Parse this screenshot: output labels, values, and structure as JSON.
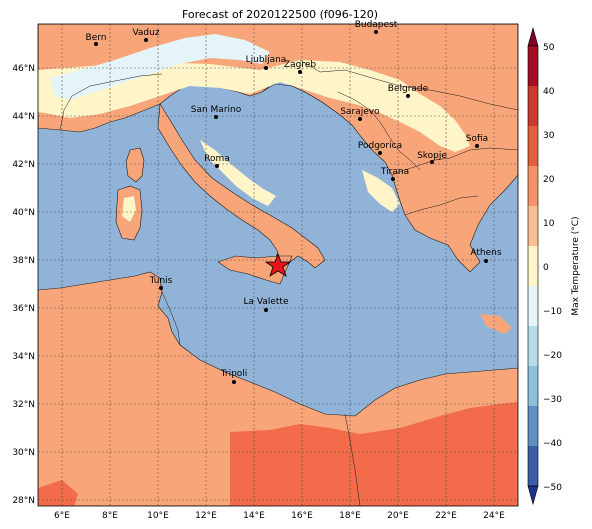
{
  "title": "Forecast of 2020122500 (f096-120)",
  "colorbar": {
    "label": "Max Temperature (°C)",
    "ticks": [
      "50",
      "40",
      "30",
      "20",
      "10",
      "0",
      "−10",
      "−20",
      "−30",
      "−40",
      "−50"
    ],
    "colors": [
      "#7f0022",
      "#a40d26",
      "#c93a2f",
      "#e06040",
      "#f3936a",
      "#f9bf94",
      "#fff5c8",
      "#e5f4f9",
      "#b7dde9",
      "#8ebfdb",
      "#5f8fc3",
      "#3a5fa8",
      "#1f3291"
    ]
  },
  "axes": {
    "lon_ticks": [
      "6°E",
      "8°E",
      "10°E",
      "12°E",
      "14°E",
      "16°E",
      "18°E",
      "20°E",
      "22°E",
      "24°E"
    ],
    "lat_ticks": [
      "46°N",
      "44°N",
      "42°N",
      "40°N",
      "38°N",
      "36°N",
      "34°N",
      "32°N",
      "30°N",
      "28°N"
    ]
  },
  "cities": [
    {
      "name": "Bern"
    },
    {
      "name": "Vaduz"
    },
    {
      "name": "Budapest"
    },
    {
      "name": "Ljubljana"
    },
    {
      "name": "Zagreb"
    },
    {
      "name": "Belgrade"
    },
    {
      "name": "San Marino"
    },
    {
      "name": "Sarajevo"
    },
    {
      "name": "Podgorica"
    },
    {
      "name": "Sofia"
    },
    {
      "name": "Skopje"
    },
    {
      "name": "Roma"
    },
    {
      "name": "Tirana"
    },
    {
      "name": "Athens"
    },
    {
      "name": "Tunis"
    },
    {
      "name": "La Valette"
    },
    {
      "name": "Tripoli"
    }
  ],
  "marker": {
    "type": "star",
    "color": "#e8141c"
  },
  "palette": {
    "sea": "#91b3d7",
    "warm": "#f9a57a",
    "hot": "#f26b4a",
    "mild": "#fff5c8",
    "cold": "#e5f4f9",
    "coast": "#1a1a1a",
    "grid": "#555555"
  }
}
